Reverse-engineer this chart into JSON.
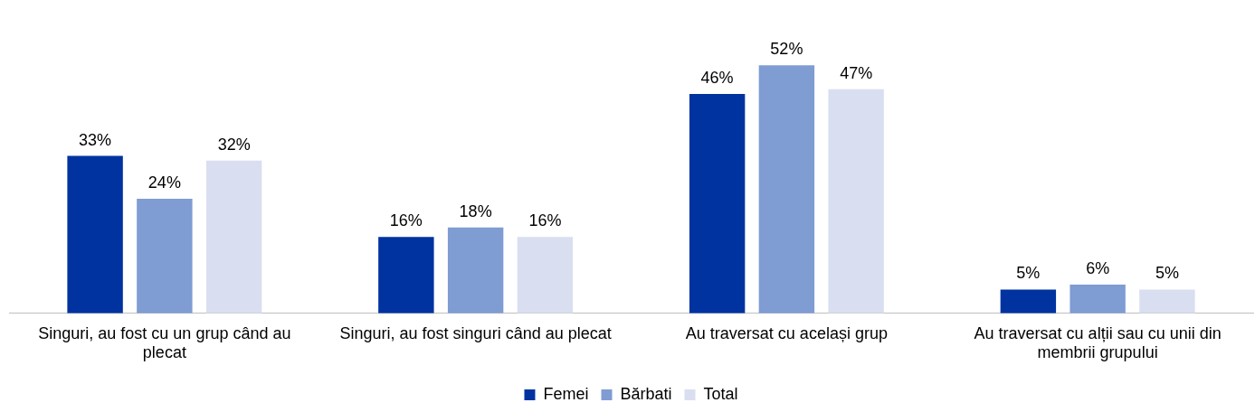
{
  "chart_data": {
    "type": "bar",
    "categories": [
      "Singuri, au fost cu un grup când au plecat",
      "Singuri, au fost singuri când au plecat",
      "Au traversat cu același grup",
      "Au traversat cu alții sau cu unii din membrii grupului"
    ],
    "series": [
      {
        "name": "Femei",
        "color": "#0033a0",
        "values": [
          33,
          16,
          46,
          5
        ],
        "value_labels": [
          "33%",
          "16%",
          "46%",
          "5%"
        ]
      },
      {
        "name": "Bărbati",
        "color": "#7f9cd3",
        "values": [
          24,
          18,
          52,
          6
        ],
        "value_labels": [
          "24%",
          "18%",
          "52%",
          "6%"
        ]
      },
      {
        "name": "Total",
        "color": "#d9dff0",
        "values": [
          32,
          16,
          47,
          5
        ],
        "value_labels": [
          "32%",
          "16%",
          "47%",
          "5%"
        ]
      }
    ],
    "legend": "bottom",
    "grid": false
  }
}
